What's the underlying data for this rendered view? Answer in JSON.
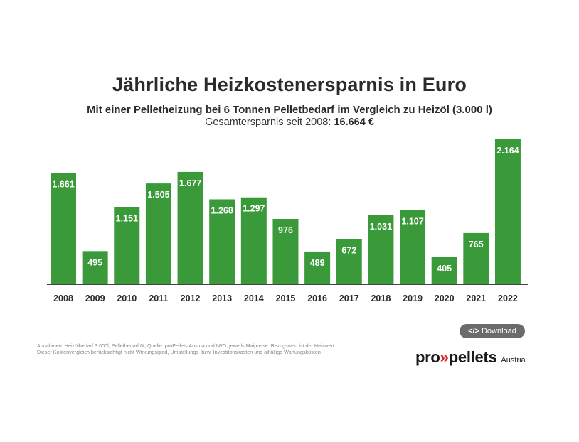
{
  "chart_data": {
    "type": "bar",
    "title": "Jährliche Heizkostenersparnis in Euro",
    "subtitle": "Mit einer Pelletheizung bei 6 Tonnen Pelletbedarf im Vergleich zu Heizöl (3.000 l)",
    "total_prefix": "Gesamtersparnis seit 2008: ",
    "total_value": "16.664 €",
    "categories": [
      "2008",
      "2009",
      "2010",
      "2011",
      "2012",
      "2013",
      "2014",
      "2015",
      "2016",
      "2017",
      "2018",
      "2019",
      "2020",
      "2021",
      "2022"
    ],
    "values": [
      1661,
      495,
      1151,
      1505,
      1677,
      1268,
      1297,
      976,
      489,
      672,
      1031,
      1107,
      405,
      765,
      2164
    ],
    "value_labels": [
      "1.661",
      "495",
      "1.151",
      "1.505",
      "1.677",
      "1.268",
      "1.297",
      "976",
      "489",
      "672",
      "1.031",
      "1.107",
      "405",
      "765",
      "2.164"
    ],
    "ylim": [
      0,
      2164
    ],
    "grid": false,
    "bar_color": "#3a9a3a"
  },
  "download": {
    "icon": "</>",
    "label": "Download"
  },
  "footnote": {
    "line1": "Annahmen: Heizölbedarf 3.000l, Pelletbedarf 6t; Quelle: proPellets Austria und IWO, jeweils Maipreise. Bezugswert ist der Heizwert.",
    "line2": "Dieser Kostenvergleich berücksichtigt nicht Wirkungsgrad, Umstellungs- bzw. Investitonskosten und allfällige Wartungskosten"
  },
  "logo": {
    "pro": "pro",
    "arrows": "»",
    "pellets": "pellets",
    "country": "Austria"
  }
}
